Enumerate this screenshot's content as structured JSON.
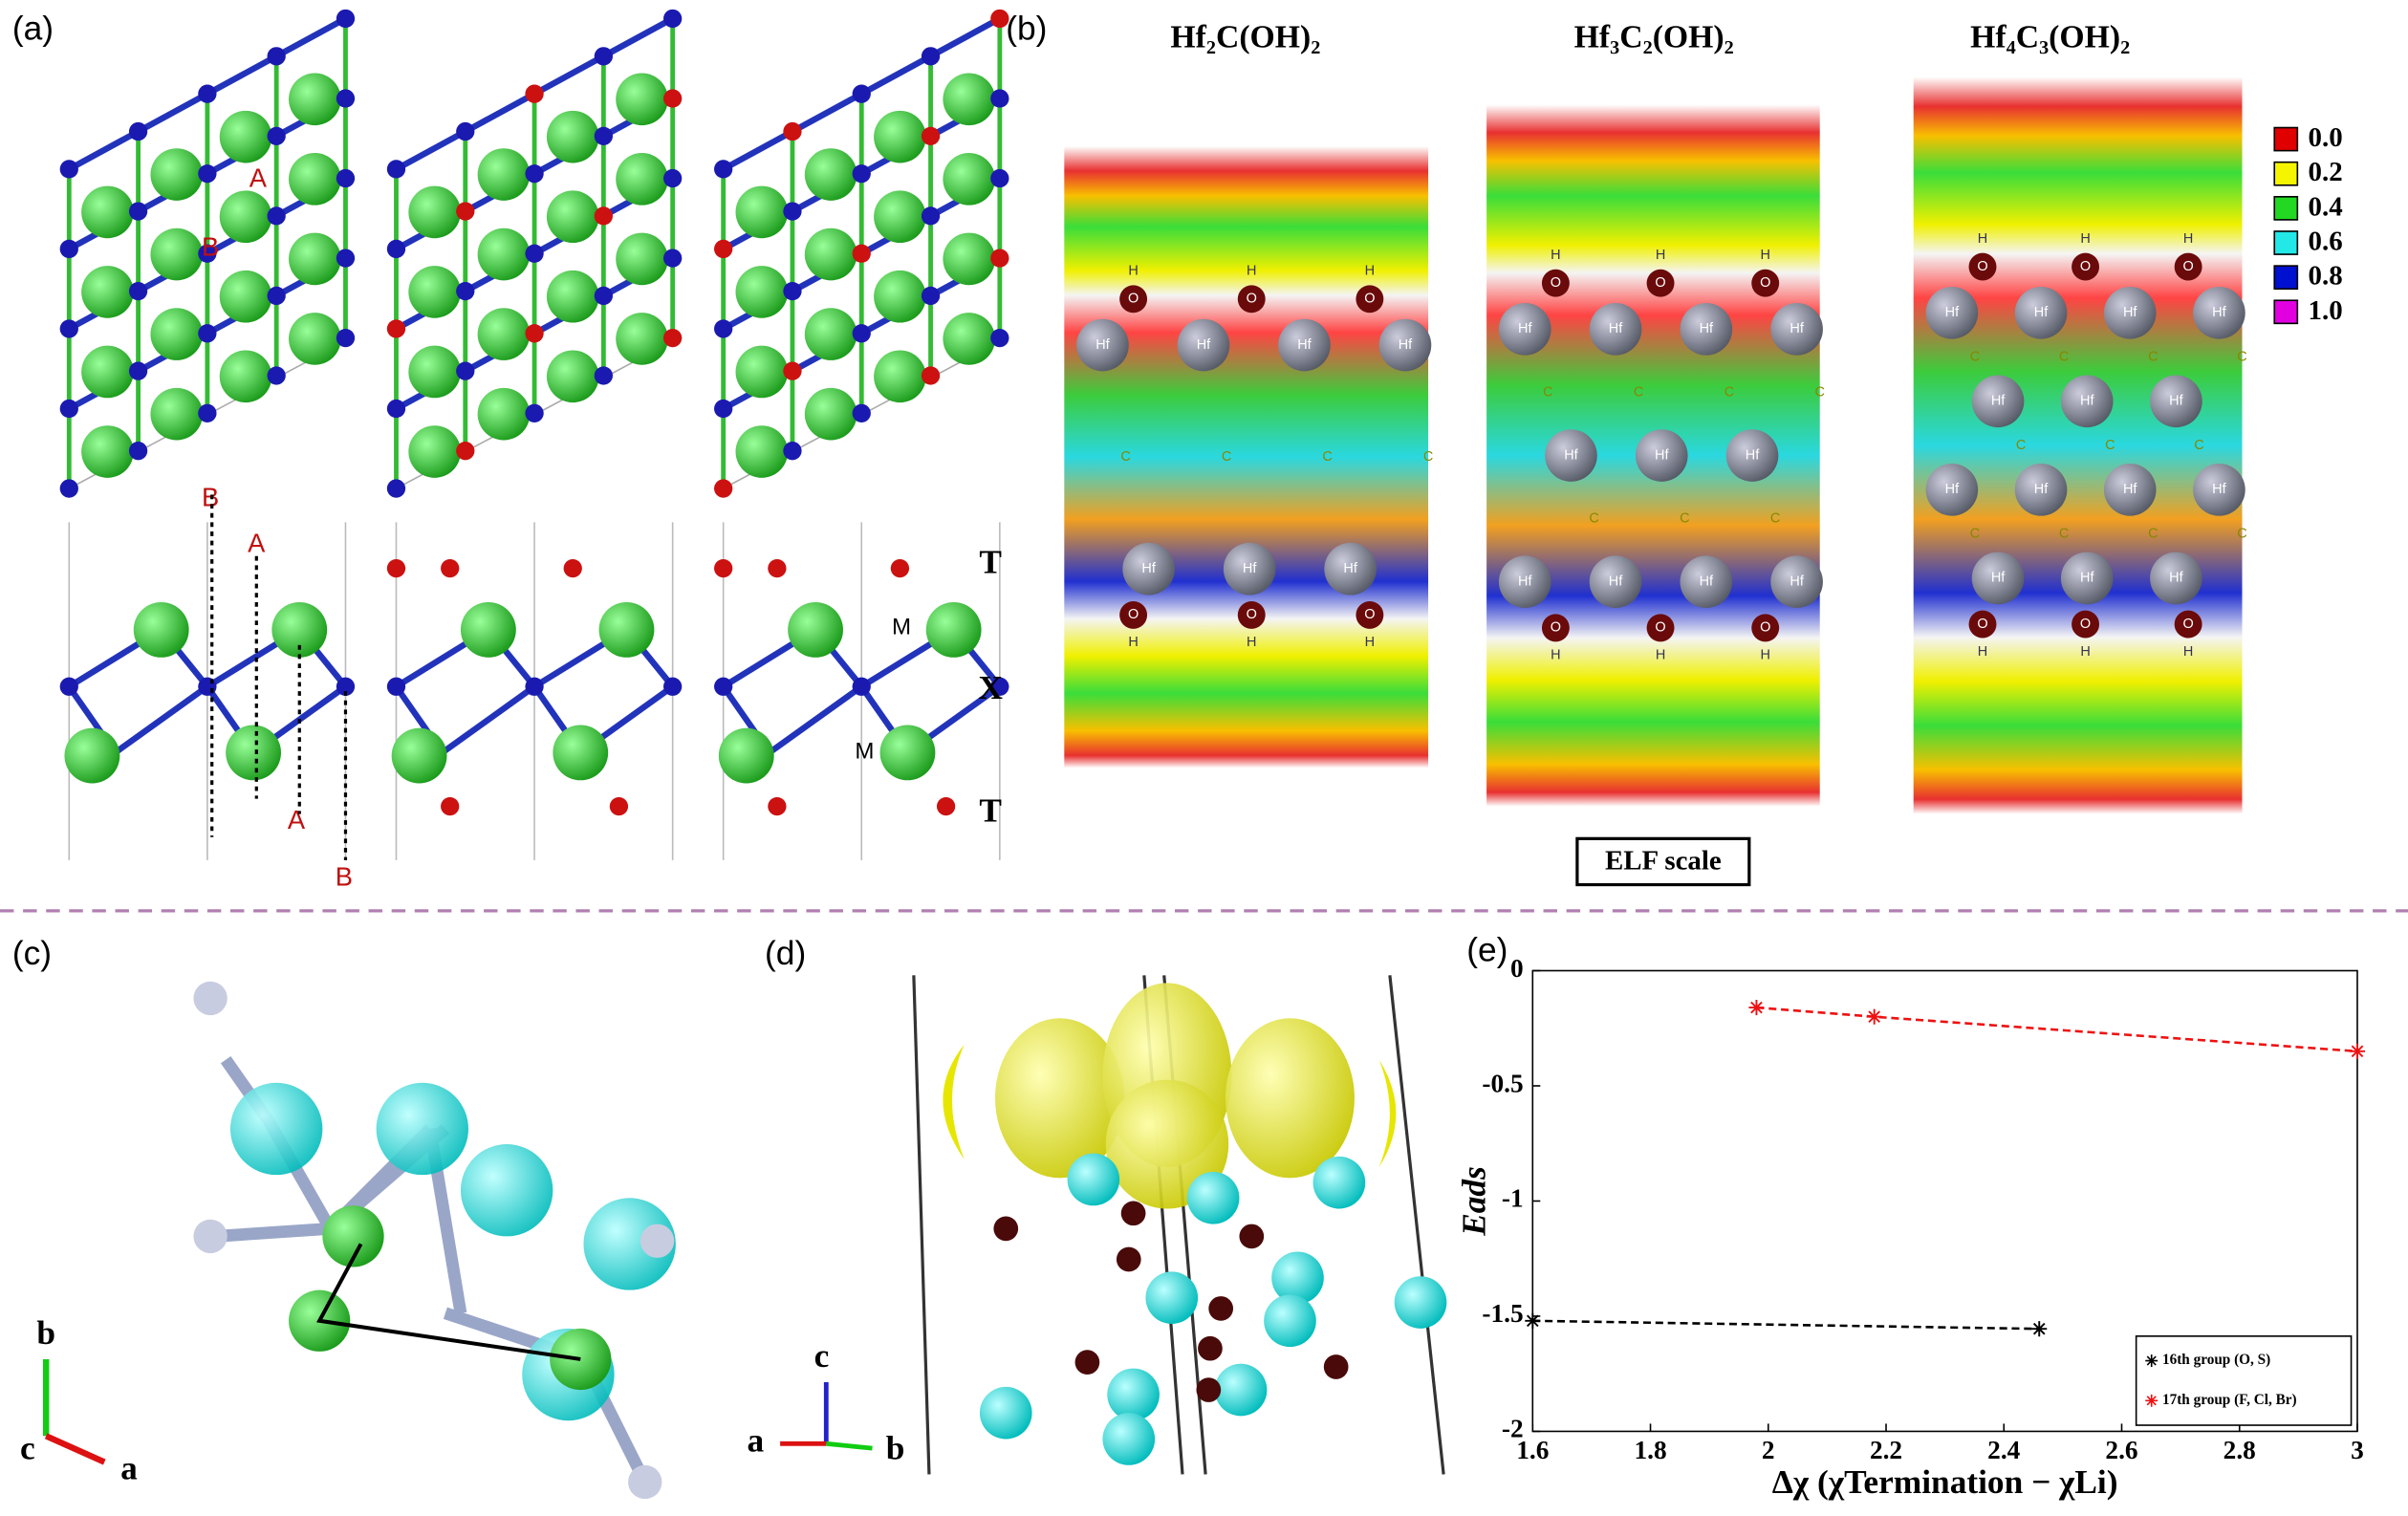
{
  "panel_a": {
    "label": "(a)",
    "site_labels": [
      "A",
      "B"
    ],
    "layer_labels": [
      "T",
      "X",
      "M"
    ]
  },
  "panel_b": {
    "label": "(b)",
    "titles": [
      "Hf₂C(OH)₂",
      "Hf₃C₂(OH)₂",
      "Hf₄C₃(OH)₂"
    ],
    "elf_scale_title": "ELF scale",
    "elf_scale": [
      {
        "label": "0.0",
        "color": "#e00000"
      },
      {
        "label": "0.2",
        "color": "#f5f500"
      },
      {
        "label": "0.4",
        "color": "#22d822"
      },
      {
        "label": "0.6",
        "color": "#22e8e8"
      },
      {
        "label": "0.8",
        "color": "#0010d0"
      },
      {
        "label": "1.0",
        "color": "#e000e0"
      }
    ]
  },
  "atom_labels": [
    "Hf",
    "O",
    "H",
    "C"
  ],
  "panel_c": {
    "label": "(c)",
    "axes": [
      "b",
      "c",
      "a"
    ]
  },
  "panel_d": {
    "label": "(d)",
    "axes": [
      "c",
      "a",
      "b"
    ]
  },
  "chart_data": {
    "type": "line",
    "panel_label": "(e)",
    "xlabel": "Δχ (χTermination − χLi)",
    "ylabel": "Eads",
    "xlim": [
      1.6,
      3
    ],
    "xticks": [
      1.6,
      1.8,
      2,
      2.2,
      2.4,
      2.6,
      2.8,
      3
    ],
    "ylim": [
      -2,
      0
    ],
    "yticks": [
      0,
      -0.5,
      -1,
      -1.5,
      -2
    ],
    "grid": false,
    "legend": "lower right",
    "series": [
      {
        "name": "16th group (O, S)",
        "color": "#000000",
        "x": [
          1.6,
          2.46
        ],
        "values": [
          -1.52,
          -1.555
        ]
      },
      {
        "name": "17th group (F, Cl, Br)",
        "color": "#ee1111",
        "x": [
          1.98,
          2.18,
          3.0
        ],
        "values": [
          -0.16,
          -0.2,
          -0.35
        ]
      }
    ]
  }
}
